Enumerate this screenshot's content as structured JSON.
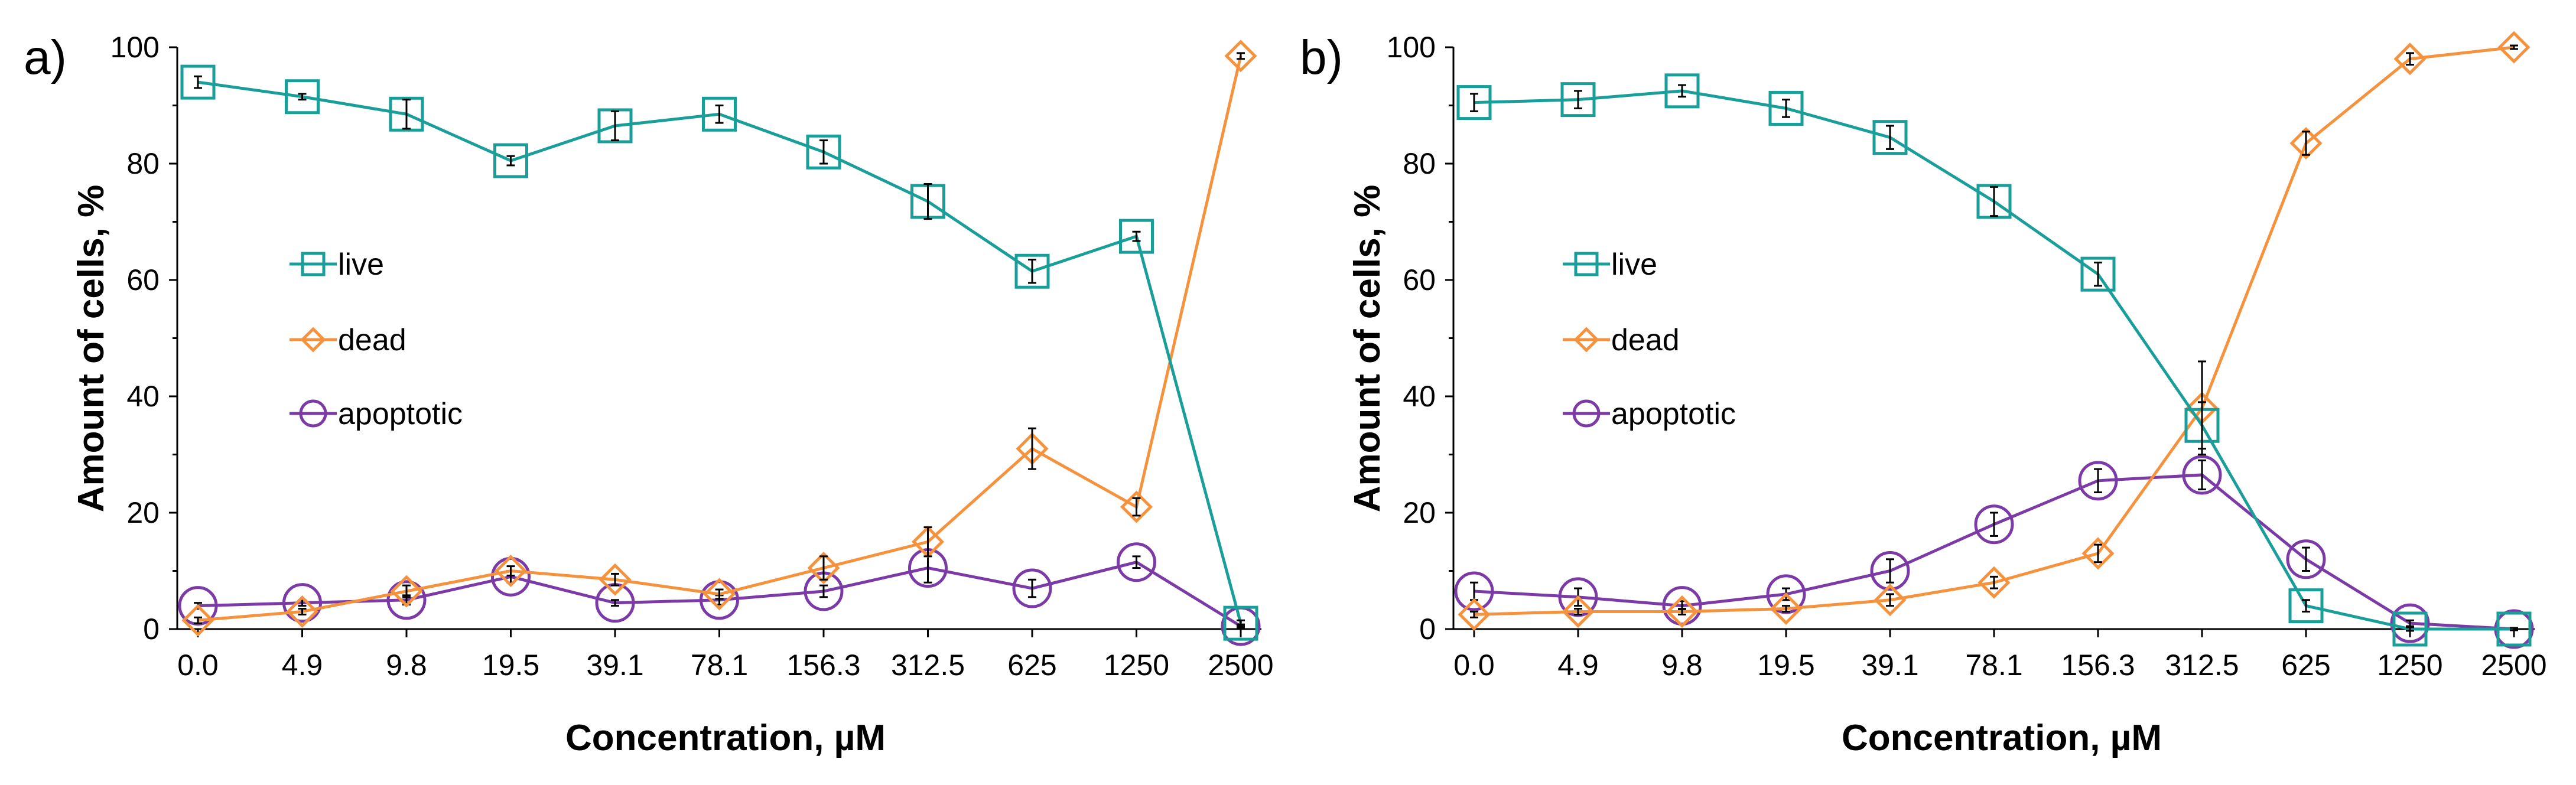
{
  "chart_data": [
    {
      "type": "line",
      "panel_label": "a)",
      "xlabel": "Concentration, µM",
      "ylabel": "Amount of cells, %",
      "ylim": [
        0,
        100
      ],
      "yticks": [
        "0",
        "20",
        "40",
        "60",
        "80",
        "100"
      ],
      "categories": [
        "0.0",
        "4.9",
        "9.8",
        "19.5",
        "39.1",
        "78.1",
        "156.3",
        "312.5",
        "625",
        "1250",
        "2500"
      ],
      "grid": false,
      "legend_position": "center-left",
      "series": [
        {
          "name": "live",
          "color": "#1a9e9a",
          "marker": "square",
          "values": [
            94,
            91.5,
            88.5,
            80.5,
            86.5,
            88.5,
            82,
            73.5,
            61.5,
            67.5,
            1
          ],
          "errors": [
            1.0,
            0.5,
            2.5,
            0.8,
            2.5,
            1.5,
            2.0,
            3.0,
            2.0,
            0.8,
            0.5
          ]
        },
        {
          "name": "dead",
          "color": "#f5923e",
          "marker": "diamond",
          "values": [
            1.5,
            3,
            6.5,
            10,
            8.5,
            6,
            10.5,
            15,
            31,
            21,
            98.5
          ],
          "errors": [
            0.5,
            0.5,
            1.0,
            0.8,
            1.0,
            0.8,
            2.0,
            2.5,
            3.5,
            1.5,
            0.5
          ]
        },
        {
          "name": "apoptotic",
          "color": "#7b3aa6",
          "marker": "circle",
          "values": [
            4,
            4.5,
            5,
            9,
            4.5,
            5,
            6.5,
            10.5,
            7,
            11.5,
            0.5
          ],
          "errors": [
            0.5,
            0.5,
            0.8,
            1.0,
            0.5,
            0.8,
            1.0,
            2.5,
            1.5,
            1.0,
            0.3
          ]
        }
      ]
    },
    {
      "type": "line",
      "panel_label": "b)",
      "xlabel": "Concentration, µM",
      "ylabel": "Amount of cells, %",
      "ylim": [
        0,
        100
      ],
      "yticks": [
        "0",
        "20",
        "40",
        "60",
        "80",
        "100"
      ],
      "categories": [
        "0.0",
        "4.9",
        "9.8",
        "19.5",
        "39.1",
        "78.1",
        "156.3",
        "312.5",
        "625",
        "1250",
        "2500"
      ],
      "grid": false,
      "legend_position": "center-left",
      "series": [
        {
          "name": "live",
          "color": "#1a9e9a",
          "marker": "square",
          "values": [
            90.5,
            91,
            92.5,
            89.5,
            84.5,
            73.5,
            61,
            35,
            4,
            0,
            0
          ],
          "errors": [
            1.5,
            1.5,
            1.0,
            1.5,
            2.0,
            2.5,
            2.0,
            4.0,
            1.0,
            0.3,
            0.2
          ]
        },
        {
          "name": "dead",
          "color": "#f5923e",
          "marker": "diamond",
          "values": [
            2.5,
            3,
            3,
            3.5,
            5,
            8,
            13,
            38,
            83.5,
            98,
            100
          ],
          "errors": [
            0.5,
            0.5,
            0.5,
            0.5,
            1.0,
            1.0,
            1.5,
            8.0,
            2.0,
            1.0,
            0.3
          ]
        },
        {
          "name": "apoptotic",
          "color": "#7b3aa6",
          "marker": "circle",
          "values": [
            6.5,
            5.5,
            4,
            6,
            10,
            18,
            25.5,
            26.5,
            12,
            1,
            0
          ],
          "errors": [
            1.5,
            1.5,
            0.8,
            1.0,
            2.0,
            2.0,
            2.0,
            2.5,
            2.0,
            0.5,
            0.2
          ]
        }
      ]
    }
  ]
}
